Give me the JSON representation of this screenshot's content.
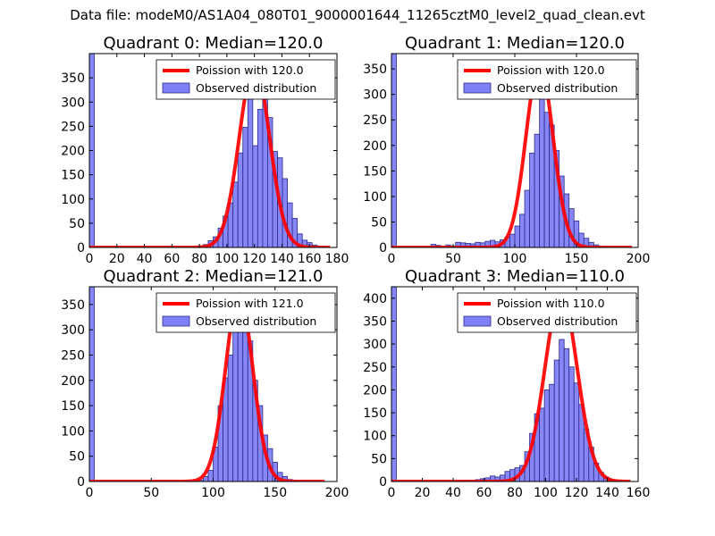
{
  "figure_title": "Data file: modeM0/AS1A04_080T01_9000001644_11265cztM0_level2_quad_clean.evt",
  "colors": {
    "bar_fill": "#7f7ff7",
    "bar_edge": "#2c2c8a",
    "curve": "#ff0000"
  },
  "chart_data": [
    {
      "type": "bar",
      "title": "Quadrant 0: Median=120.0",
      "legend_curve": "Poission with 120.0",
      "legend_bars": "Observed distribution",
      "legend_placement": "top-right",
      "xlim": [
        0,
        180
      ],
      "ylim": [
        0,
        400
      ],
      "xticks": [
        "0",
        "20",
        "40",
        "60",
        "80",
        "100",
        "120",
        "140",
        "160",
        "180"
      ],
      "yticks": [
        "0",
        "50",
        "100",
        "150",
        "200",
        "250",
        "300",
        "350"
      ],
      "bin_width": 3.6,
      "bars": [
        [
          0,
          400
        ],
        [
          79.2,
          3
        ],
        [
          82.8,
          6
        ],
        [
          86.4,
          14
        ],
        [
          90,
          22
        ],
        [
          93.6,
          40
        ],
        [
          97.2,
          65
        ],
        [
          100.8,
          92
        ],
        [
          104.4,
          135
        ],
        [
          108,
          195
        ],
        [
          111.6,
          248
        ],
        [
          115.2,
          345
        ],
        [
          118.8,
          210
        ],
        [
          122.4,
          285
        ],
        [
          126,
          335
        ],
        [
          129.6,
          268
        ],
        [
          133.2,
          198
        ],
        [
          136.8,
          185
        ],
        [
          140.4,
          142
        ],
        [
          144,
          92
        ],
        [
          147.6,
          60
        ],
        [
          151.2,
          28
        ],
        [
          154.8,
          15
        ],
        [
          158.4,
          10
        ],
        [
          162,
          5
        ],
        [
          165.6,
          3
        ],
        [
          169.2,
          2
        ]
      ],
      "curve_mu": 120.0,
      "curve_peak": 378,
      "curve_x": [
        0,
        175
      ]
    },
    {
      "type": "bar",
      "title": "Quadrant 1: Median=120.0",
      "legend_curve": "Poission with 120.0",
      "legend_bars": "Observed distribution",
      "legend_placement": "top-right",
      "xlim": [
        0,
        200
      ],
      "ylim": [
        0,
        380
      ],
      "xticks": [
        "0",
        "50",
        "100",
        "150",
        "200"
      ],
      "yticks": [
        "0",
        "50",
        "100",
        "150",
        "200",
        "250",
        "300",
        "350"
      ],
      "bin_width": 4,
      "bars": [
        [
          0,
          380
        ],
        [
          32,
          6
        ],
        [
          36,
          4
        ],
        [
          44,
          5
        ],
        [
          48,
          3
        ],
        [
          52,
          10
        ],
        [
          56,
          9
        ],
        [
          60,
          8
        ],
        [
          64,
          7
        ],
        [
          68,
          10
        ],
        [
          72,
          9
        ],
        [
          76,
          12
        ],
        [
          80,
          14
        ],
        [
          84,
          11
        ],
        [
          88,
          15
        ],
        [
          92,
          20
        ],
        [
          96,
          26
        ],
        [
          100,
          42
        ],
        [
          104,
          65
        ],
        [
          108,
          112
        ],
        [
          112,
          185
        ],
        [
          116,
          222
        ],
        [
          120,
          350
        ],
        [
          124,
          265
        ],
        [
          128,
          240
        ],
        [
          132,
          190
        ],
        [
          136,
          140
        ],
        [
          140,
          105
        ],
        [
          144,
          76
        ],
        [
          148,
          52
        ],
        [
          152,
          28
        ],
        [
          156,
          18
        ],
        [
          160,
          10
        ],
        [
          164,
          5
        ],
        [
          168,
          2
        ],
        [
          172,
          1
        ]
      ],
      "curve_mu": 120.0,
      "curve_peak": 360,
      "curve_x": [
        0,
        195
      ]
    },
    {
      "type": "bar",
      "title": "Quadrant 2: Median=121.0",
      "legend_curve": "Poission with 121.0",
      "legend_bars": "Observed distribution",
      "legend_placement": "top-right",
      "xlim": [
        0,
        200
      ],
      "ylim": [
        0,
        385
      ],
      "xticks": [
        "0",
        "50",
        "100",
        "150",
        "200"
      ],
      "yticks": [
        "0",
        "50",
        "100",
        "150",
        "200",
        "250",
        "300",
        "350"
      ],
      "bin_width": 4,
      "bars": [
        [
          0,
          385
        ],
        [
          88,
          3
        ],
        [
          92,
          10
        ],
        [
          96,
          22
        ],
        [
          100,
          68
        ],
        [
          104,
          150
        ],
        [
          108,
          205
        ],
        [
          112,
          250
        ],
        [
          116,
          340
        ],
        [
          120,
          365
        ],
        [
          124,
          345
        ],
        [
          128,
          278
        ],
        [
          132,
          200
        ],
        [
          136,
          150
        ],
        [
          140,
          92
        ],
        [
          144,
          65
        ],
        [
          148,
          38
        ],
        [
          152,
          18
        ],
        [
          156,
          10
        ],
        [
          160,
          4
        ],
        [
          164,
          2
        ],
        [
          168,
          1
        ]
      ],
      "curve_mu": 121.0,
      "curve_peak": 370,
      "curve_x": [
        0,
        190
      ]
    },
    {
      "type": "bar",
      "title": "Quadrant 3: Median=110.0",
      "legend_curve": "Poission with 110.0",
      "legend_bars": "Observed distribution",
      "legend_placement": "top-right",
      "xlim": [
        0,
        160
      ],
      "ylim": [
        0,
        425
      ],
      "xticks": [
        "0",
        "20",
        "40",
        "60",
        "80",
        "100",
        "120",
        "140",
        "160"
      ],
      "yticks": [
        "0",
        "50",
        "100",
        "150",
        "200",
        "250",
        "300",
        "350",
        "400"
      ],
      "bin_width": 3.2,
      "bars": [
        [
          0,
          425
        ],
        [
          44.8,
          2
        ],
        [
          48,
          3
        ],
        [
          54.4,
          4
        ],
        [
          57.6,
          6
        ],
        [
          60.8,
          8
        ],
        [
          64,
          12
        ],
        [
          67.2,
          10
        ],
        [
          70.4,
          14
        ],
        [
          73.6,
          22
        ],
        [
          76.8,
          26
        ],
        [
          80,
          30
        ],
        [
          83.2,
          35
        ],
        [
          86.4,
          65
        ],
        [
          89.6,
          105
        ],
        [
          92.8,
          148
        ],
        [
          96,
          160
        ],
        [
          99.2,
          200
        ],
        [
          102.4,
          212
        ],
        [
          105.6,
          265
        ],
        [
          108.8,
          310
        ],
        [
          112,
          290
        ],
        [
          115.2,
          250
        ],
        [
          118.4,
          215
        ],
        [
          121.6,
          168
        ],
        [
          124.8,
          115
        ],
        [
          128,
          75
        ],
        [
          131.2,
          40
        ],
        [
          134.4,
          20
        ],
        [
          137.6,
          10
        ],
        [
          140.8,
          5
        ],
        [
          144,
          2
        ]
      ],
      "curve_mu": 110.0,
      "curve_peak": 408,
      "curve_x": [
        0,
        155
      ]
    }
  ]
}
